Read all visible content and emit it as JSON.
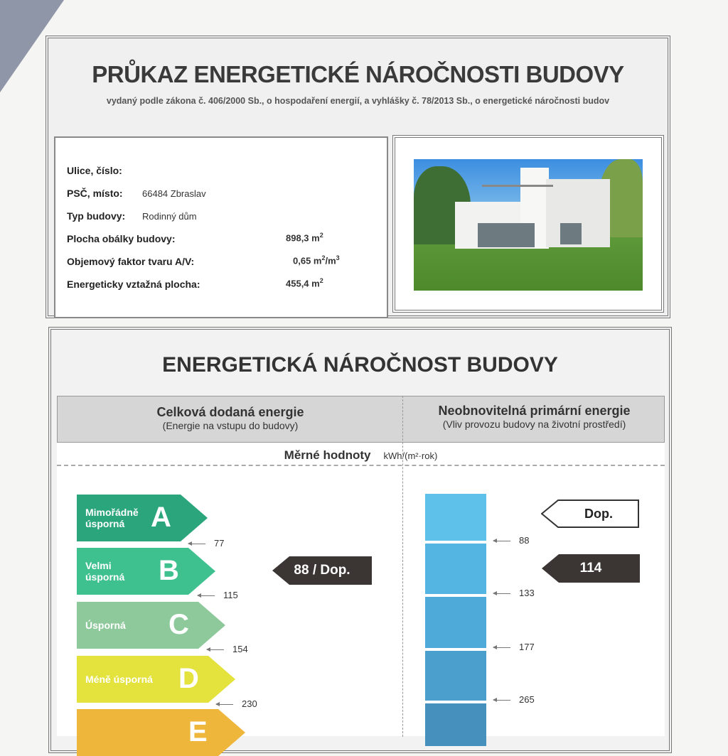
{
  "header": {
    "title": "PRŮKAZ ENERGETICKÉ NÁROČNOSTI BUDOVY",
    "subtitle": "vydaný podle zákona č. 406/2000 Sb., o hospodaření energií, a vyhlášky č. 78/2013 Sb., o energetické náročnosti budov"
  },
  "info": {
    "street_label": "Ulice, číslo:",
    "street_value": "",
    "zip_label": "PSČ, místo:",
    "zip_value": "66484  Zbraslav",
    "type_label": "Typ budovy:",
    "type_value": "Rodinný dům",
    "area_label": "Plocha obálky budovy:",
    "area_value": "898,3 m",
    "area_unit_exp": "2",
    "factor_label": "Objemový faktor tvaru A/V:",
    "factor_value": "0,65 m",
    "factor_exp1": "2",
    "factor_mid": "/m",
    "factor_exp2": "3",
    "ref_label": "Energeticky vztažná plocha:",
    "ref_value": "455,4 m",
    "ref_exp": "2"
  },
  "section": {
    "title": "ENERGETICKÁ NÁROČNOST BUDOVY",
    "left_title": "Celková dodaná energie",
    "left_sub": "(Energie na vstupu do budovy)",
    "right_title": "Neobnovitelná primární energie",
    "right_sub": "(Vliv provozu budovy na životní prostředí)",
    "specific": "Měrné hodnoty",
    "unit": "kWh/(m²·rok)"
  },
  "classes": [
    {
      "label": "Mimořádně úsporná",
      "letter": "A",
      "color": "#2ba57b"
    },
    {
      "label": "Velmi úsporná",
      "letter": "B",
      "color": "#3fc08f"
    },
    {
      "label": "Úsporná",
      "letter": "C",
      "color": "#8ec99c"
    },
    {
      "label": "Méně úsporná",
      "letter": "D",
      "color": "#e4e23c"
    },
    {
      "label": "",
      "letter": "E",
      "color": "#efb63c"
    }
  ],
  "delivered_thresholds": [
    "77",
    "115",
    "154",
    "230"
  ],
  "primary_thresholds": [
    "88",
    "133",
    "177",
    "265"
  ],
  "primary_colors": [
    "#5ec1ea",
    "#55b5e2",
    "#4eaad8",
    "#4a9fcc",
    "#4590bc"
  ],
  "delivered_marker": "88 / Dop.",
  "primary_markers": {
    "required": "Dop.",
    "actual": "114"
  }
}
